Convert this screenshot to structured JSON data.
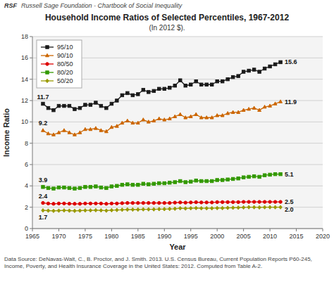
{
  "chart_data": {
    "type": "line",
    "header": [
      "RSF",
      "Russell Sage Foundation - Chartbook of Social Inequality"
    ],
    "title": "Household Income Ratios of Selected Percentiles, 1967-2012",
    "subtitle": "(In 2012 $).",
    "x_label": "Year",
    "y_label": "Income Ratio",
    "source": "Data Source: DeNavas-Walt, C., B. Proctor, and J. Smith. 2013. U.S. Census Bureau, Current Population Reports P60-245, Income, Poverty, and Health Insurance Coverage in the United States: 2012.  Computed from Table A-2.",
    "xlim": [
      1965,
      2020
    ],
    "ylim": [
      0,
      18
    ],
    "xticks": [
      1965,
      1970,
      1975,
      1980,
      1985,
      1990,
      1995,
      2000,
      2005,
      2010,
      2015,
      2020
    ],
    "yticks": [
      0,
      2,
      4,
      6,
      8,
      10,
      12,
      14,
      16,
      18
    ],
    "grid": true,
    "legend": "upper left",
    "x": [
      1967,
      1968,
      1969,
      1970,
      1971,
      1972,
      1973,
      1974,
      1975,
      1976,
      1977,
      1978,
      1979,
      1980,
      1981,
      1982,
      1983,
      1984,
      1985,
      1986,
      1987,
      1988,
      1989,
      1990,
      1991,
      1992,
      1993,
      1994,
      1995,
      1996,
      1997,
      1998,
      1999,
      2000,
      2001,
      2002,
      2003,
      2004,
      2005,
      2006,
      2007,
      2008,
      2009,
      2010,
      2011,
      2012
    ],
    "series": [
      {
        "name": "95/10",
        "color": "#1a1a1a",
        "marker": "square",
        "values": [
          11.7,
          11.3,
          11.1,
          11.5,
          11.5,
          11.5,
          11.2,
          11.3,
          11.6,
          11.6,
          11.8,
          11.5,
          11.3,
          11.7,
          12.0,
          12.5,
          12.7,
          12.5,
          12.6,
          13.0,
          12.8,
          12.9,
          13.1,
          13.1,
          13.2,
          13.4,
          13.9,
          13.4,
          13.5,
          13.8,
          13.5,
          13.5,
          13.5,
          13.8,
          13.8,
          14.0,
          14.2,
          14.3,
          14.7,
          14.8,
          14.9,
          14.7,
          15.0,
          15.2,
          15.4,
          15.6
        ]
      },
      {
        "name": "90/10",
        "color": "#cc6600",
        "marker": "triangle",
        "values": [
          9.2,
          8.9,
          8.8,
          9.0,
          9.2,
          9.0,
          8.8,
          9.0,
          9.3,
          9.3,
          9.4,
          9.2,
          9.1,
          9.5,
          9.6,
          9.9,
          10.1,
          9.9,
          9.9,
          10.2,
          10.0,
          10.1,
          10.3,
          10.2,
          10.3,
          10.5,
          10.7,
          10.4,
          10.5,
          10.7,
          10.4,
          10.4,
          10.4,
          10.6,
          10.6,
          10.8,
          10.9,
          10.9,
          11.1,
          11.2,
          11.3,
          11.1,
          11.4,
          11.5,
          11.7,
          11.9
        ]
      },
      {
        "name": "80/50",
        "color": "#dd0000",
        "marker": "circle",
        "values": [
          2.4,
          2.35,
          2.32,
          2.35,
          2.35,
          2.33,
          2.32,
          2.32,
          2.35,
          2.35,
          2.35,
          2.35,
          2.32,
          2.35,
          2.35,
          2.38,
          2.4,
          2.4,
          2.4,
          2.4,
          2.4,
          2.4,
          2.4,
          2.4,
          2.4,
          2.43,
          2.45,
          2.43,
          2.45,
          2.47,
          2.45,
          2.45,
          2.45,
          2.48,
          2.48,
          2.48,
          2.48,
          2.48,
          2.5,
          2.5,
          2.5,
          2.5,
          2.5,
          2.5,
          2.5,
          2.5
        ]
      },
      {
        "name": "80/20",
        "color": "#339900",
        "marker": "square",
        "values": [
          3.9,
          3.8,
          3.75,
          3.85,
          3.85,
          3.8,
          3.75,
          3.8,
          3.9,
          3.9,
          3.95,
          3.85,
          3.8,
          3.95,
          4.0,
          4.1,
          4.15,
          4.1,
          4.1,
          4.2,
          4.15,
          4.2,
          4.25,
          4.25,
          4.3,
          4.35,
          4.45,
          4.35,
          4.4,
          4.5,
          4.45,
          4.45,
          4.45,
          4.55,
          4.55,
          4.6,
          4.65,
          4.7,
          4.8,
          4.85,
          4.9,
          4.85,
          5.0,
          5.05,
          5.1,
          5.1
        ]
      },
      {
        "name": "50/20",
        "color": "#999900",
        "marker": "diamond",
        "values": [
          1.7,
          1.68,
          1.66,
          1.68,
          1.7,
          1.68,
          1.66,
          1.68,
          1.7,
          1.7,
          1.72,
          1.7,
          1.68,
          1.72,
          1.74,
          1.76,
          1.78,
          1.78,
          1.78,
          1.8,
          1.8,
          1.8,
          1.82,
          1.82,
          1.84,
          1.86,
          1.9,
          1.88,
          1.9,
          1.92,
          1.9,
          1.9,
          1.9,
          1.92,
          1.92,
          1.94,
          1.95,
          1.96,
          1.98,
          2.0,
          2.0,
          1.98,
          2.0,
          2.0,
          2.0,
          2.0
        ]
      }
    ],
    "annotations": [
      {
        "text": "11.7",
        "x": 1967,
        "y": 11.7
      },
      {
        "text": "15.6",
        "x": 2012,
        "y": 15.6
      },
      {
        "text": "9.2",
        "x": 1967,
        "y": 9.2
      },
      {
        "text": "11.9",
        "x": 2012,
        "y": 11.9
      },
      {
        "text": "2.4",
        "x": 1967,
        "y": 2.4
      },
      {
        "text": "2.5",
        "x": 2012,
        "y": 2.5
      },
      {
        "text": "3.9",
        "x": 1967,
        "y": 3.9
      },
      {
        "text": "5.1",
        "x": 2012,
        "y": 5.1
      },
      {
        "text": "1.7",
        "x": 1967,
        "y": 1.7
      },
      {
        "text": "2.0",
        "x": 2012,
        "y": 2.0
      }
    ]
  }
}
